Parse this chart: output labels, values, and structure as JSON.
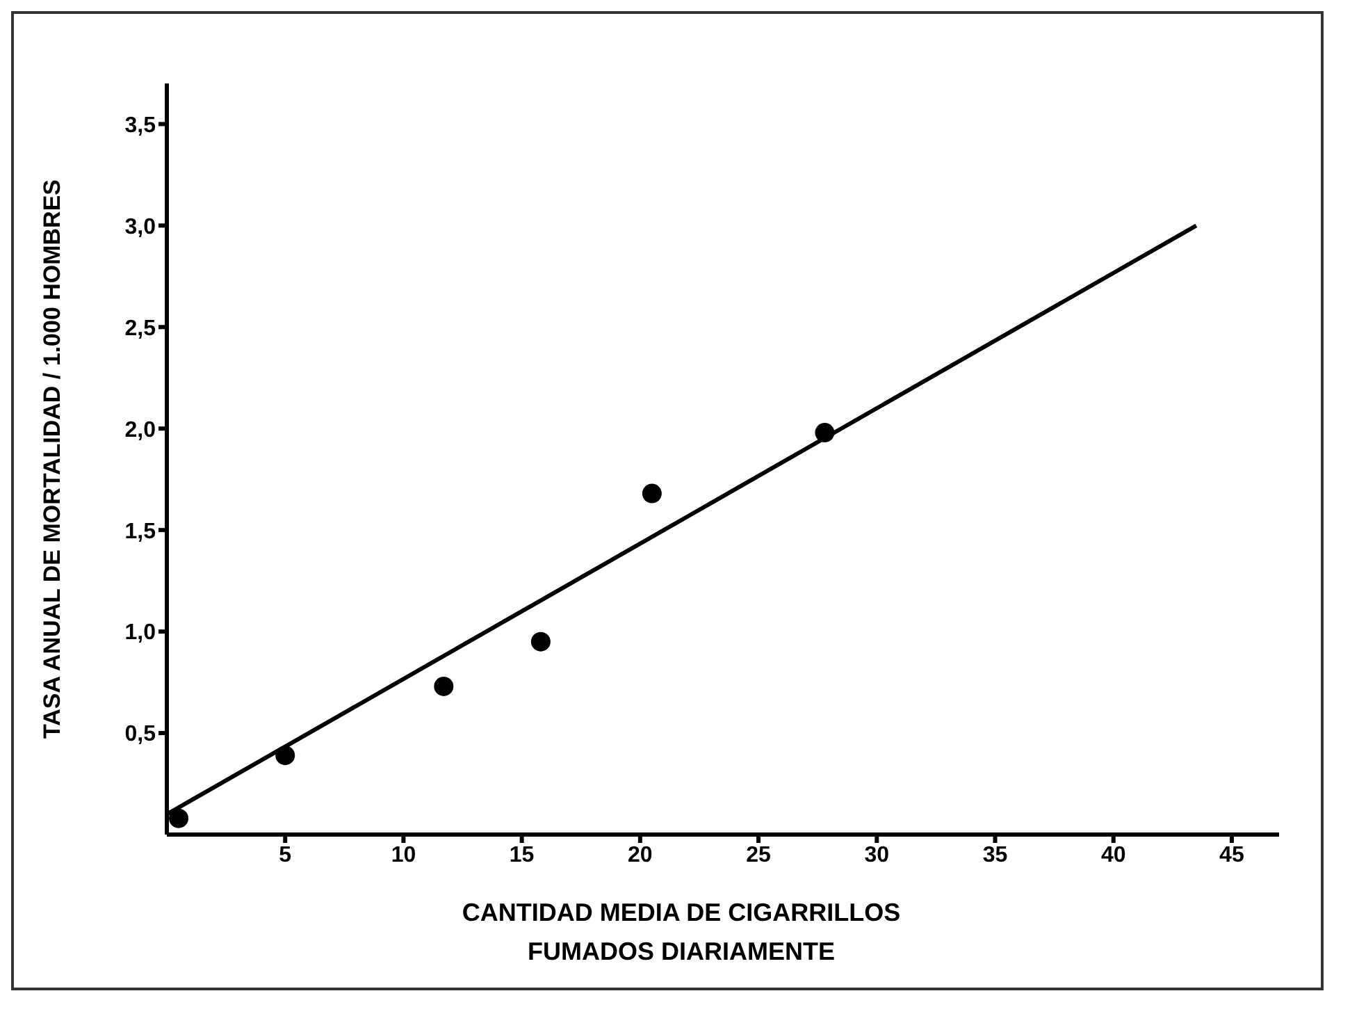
{
  "chart_data": {
    "type": "scatter",
    "xlabel": "CANTIDAD MEDIA DE CIGARRILLOS\nFUMADOS DIARIAMENTE",
    "ylabel": "TASA ANUAL DE MORTALIDAD / 1.000 HOMBRES",
    "series": [
      {
        "color": "#000000",
        "marker": "circle",
        "x": [
          0.5,
          5,
          11.7,
          15.8,
          20.5,
          27.8
        ],
        "values": [
          0.08,
          0.39,
          0.73,
          0.95,
          1.68,
          1.98
        ]
      },
      {
        "type": "line",
        "color": "#000000",
        "marker": "none",
        "x": [
          0,
          43.5
        ],
        "values": [
          0.1,
          3.0
        ]
      }
    ],
    "xlim": [
      0,
      47
    ],
    "xticks": [
      5,
      10,
      15,
      20,
      25,
      30,
      35,
      40,
      45
    ],
    "ylim": [
      0,
      3.7
    ],
    "yticks": [
      {
        "value": 0.5,
        "label": "0,5"
      },
      {
        "value": 1,
        "label": "1,0"
      },
      {
        "value": 1.5,
        "label": "1,5"
      },
      {
        "value": 2,
        "label": "2,0"
      },
      {
        "value": 2.5,
        "label": "2,5"
      },
      {
        "value": 3,
        "label": "3,0"
      },
      {
        "value": 3.5,
        "label": "3,5"
      }
    ]
  }
}
